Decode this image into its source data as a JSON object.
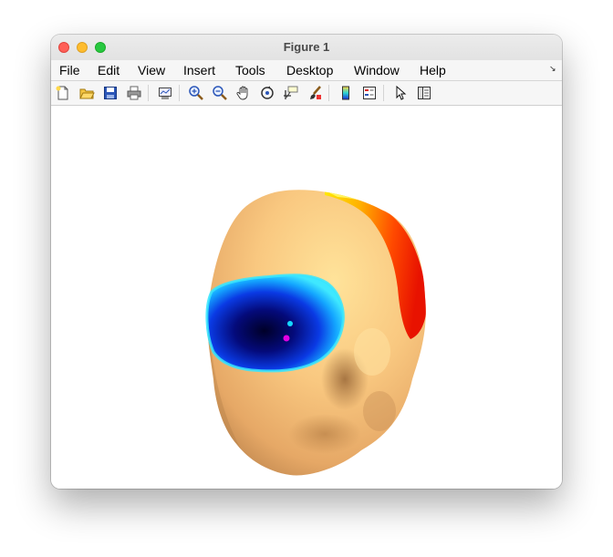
{
  "window": {
    "title": "Figure 1"
  },
  "menubar": {
    "items": [
      "File",
      "Edit",
      "View",
      "Insert",
      "Tools",
      "Desktop",
      "Window",
      "Help"
    ]
  },
  "toolbar": {
    "buttons": [
      {
        "name": "new-figure-icon"
      },
      {
        "name": "open-file-icon"
      },
      {
        "name": "save-icon"
      },
      {
        "name": "print-icon"
      },
      {
        "name": "link-plot-icon"
      },
      {
        "name": "zoom-in-icon"
      },
      {
        "name": "zoom-out-icon"
      },
      {
        "name": "pan-hand-icon"
      },
      {
        "name": "rotate-3d-icon"
      },
      {
        "name": "data-cursor-icon"
      },
      {
        "name": "brush-icon"
      },
      {
        "name": "colorbar-icon"
      },
      {
        "name": "legend-icon"
      },
      {
        "name": "pointer-icon"
      },
      {
        "name": "property-editor-icon"
      }
    ]
  },
  "colors": {
    "skin": "#f8c27f",
    "cool_patch": "#0a2acc",
    "hot_patch": "#ff2a00",
    "marker_magenta": "#e400e4",
    "marker_cyan": "#14d8ff"
  }
}
